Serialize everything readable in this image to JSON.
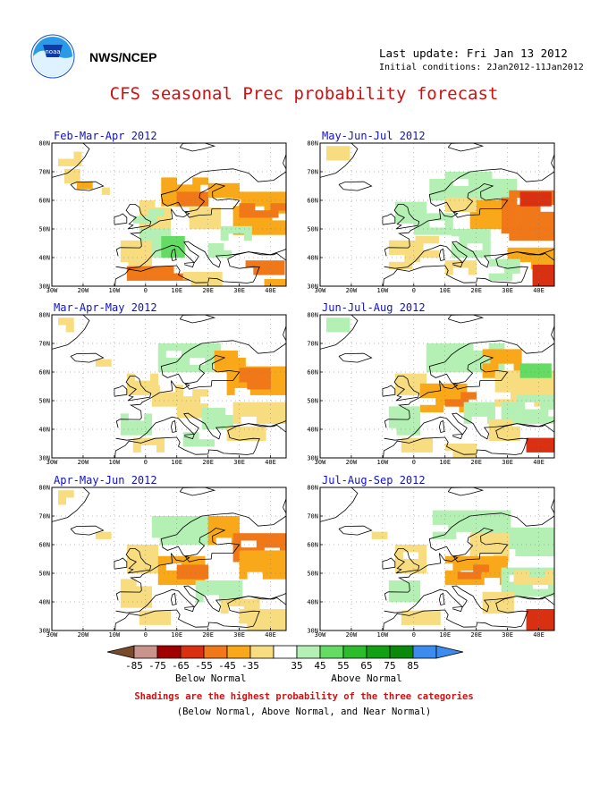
{
  "header": {
    "agency": "NWS/NCEP",
    "last_update": "Last update: Fri Jan 13 2012",
    "initial_conditions": "Initial conditions: 2Jan2012-11Jan2012",
    "title": "CFS seasonal Prec probability forecast"
  },
  "axes": {
    "lon_ticks": [
      "30W",
      "20W",
      "10W",
      "0",
      "10E",
      "20E",
      "30E",
      "40E"
    ],
    "lat_ticks": [
      "30N",
      "40N",
      "50N",
      "60N",
      "70N",
      "80N"
    ],
    "lon_range": [
      -30,
      45
    ],
    "lat_range": [
      30,
      80
    ],
    "grid": "dotted"
  },
  "panels": [
    {
      "label": "Feb-Mar-Apr 2012",
      "pattern": "fma"
    },
    {
      "label": "May-Jun-Jul 2012",
      "pattern": "mjj"
    },
    {
      "label": "Mar-Apr-May 2012",
      "pattern": "mam"
    },
    {
      "label": "Jun-Jul-Aug 2012",
      "pattern": "jja"
    },
    {
      "label": "Apr-May-Jun 2012",
      "pattern": "amj"
    },
    {
      "label": "Jul-Aug-Sep 2012",
      "pattern": "jas"
    }
  ],
  "legend": {
    "ticks": [
      "-85",
      "-75",
      "-65",
      "-55",
      "-45",
      "-35",
      "35",
      "45",
      "55",
      "65",
      "75",
      "85"
    ],
    "colors": [
      "#7a4a2c",
      "#c8948c",
      "#a00000",
      "#d83010",
      "#f07818",
      "#f8a818",
      "#f8dc80",
      "#ffffff",
      "#b4f0b4",
      "#64dc64",
      "#2cbc2c",
      "#14a014",
      "#0a8a0a",
      "#3c8cf0",
      "#3c8cf0"
    ],
    "below_label": "Below Normal",
    "above_label": "Above Normal"
  },
  "notes": {
    "line1": "Shadings are the highest probability of the three categories",
    "line2": "(Below Normal, Above Normal, and Near Normal)"
  },
  "shading_colors": {
    "below_light": "#f8dc80",
    "below_mid": "#f8a818",
    "below_strong": "#f07818",
    "below_stronger": "#d83010",
    "above_light": "#b4f0b4",
    "above_mid": "#64dc64"
  }
}
